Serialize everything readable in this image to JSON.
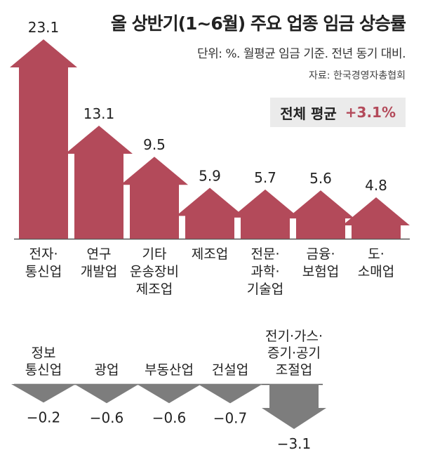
{
  "title": "올 상반기(1~6월) 주요 업종 임금 상승률",
  "subtitle": "단위: %. 월평균 임금 기준. 전년 동기 대비.",
  "source": "자료: 한국경영자총협회",
  "average": {
    "label": "전체 평균",
    "value": "+3.1%"
  },
  "colors": {
    "positive": "#b34a5a",
    "negative": "#7d7d7d",
    "average_text": "#b34a5a"
  },
  "chart_data": [
    {
      "type": "bar",
      "subtype": "upward-arrows",
      "categories": [
        [
          "전자·",
          "통신업"
        ],
        [
          "연구",
          "개발업"
        ],
        [
          "기타",
          "운송장비",
          "제조업"
        ],
        [
          "제조업"
        ],
        [
          "전문·",
          "과학·",
          "기술업"
        ],
        [
          "금융·",
          "보험업"
        ],
        [
          "도·",
          "소매업"
        ]
      ],
      "values": [
        23.1,
        13.1,
        9.5,
        5.9,
        5.7,
        5.6,
        4.8
      ],
      "value_labels": [
        "23.1",
        "13.1",
        "9.5",
        "5.9",
        "5.7",
        "5.6",
        "4.8"
      ]
    },
    {
      "type": "bar",
      "subtype": "downward-arrows",
      "categories": [
        [
          "정보",
          "통신업"
        ],
        [
          "광업"
        ],
        [
          "부동산업"
        ],
        [
          "건설업"
        ],
        [
          "전기·가스·",
          "증기·공기",
          "조절업"
        ]
      ],
      "values": [
        -0.2,
        -0.6,
        -0.6,
        -0.7,
        -3.1
      ],
      "value_labels": [
        "−0.2",
        "−0.6",
        "−0.6",
        "−0.7",
        "−3.1"
      ]
    }
  ]
}
